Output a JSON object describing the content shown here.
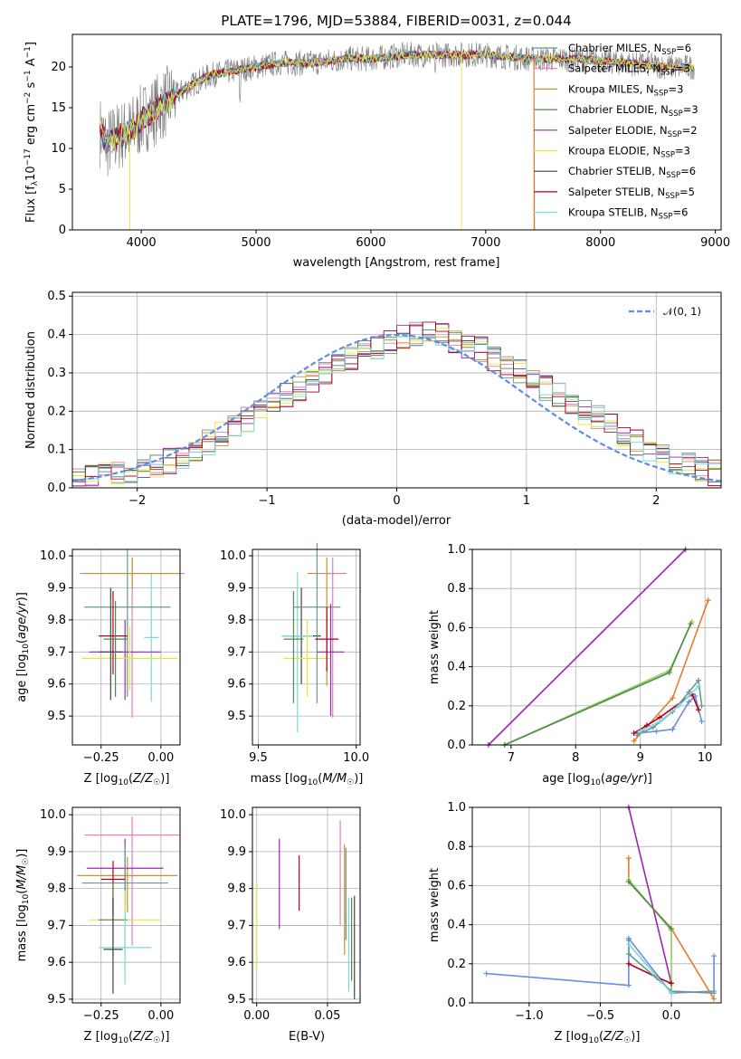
{
  "title": "PLATE=1796, MJD=53884, FIBERID=0031, z=0.044",
  "colors": [
    "#6a9a8a",
    "#f07ab8",
    "#c8922e",
    "#4f8a4f",
    "#9b27b0",
    "#e8e832",
    "#444444",
    "#b00020",
    "#7ad8e0"
  ],
  "chart_data": [
    {
      "id": "spectrum",
      "type": "line",
      "xlabel": "wavelength [Angstrom, rest frame]",
      "ylabel": "Flux [f_λ 10^-17 erg cm^-2 s^-1 A^-1]",
      "ylabel_parts": {
        "main": "Flux [f",
        "sub1": "λ",
        "mid": "10",
        "sup1": "−17",
        "rest": " erg cm",
        "sup2": "−2",
        "rest2": " s",
        "sup3": "−1",
        "rest3": " A",
        "sup4": "−1",
        "end": "]"
      },
      "xlim": [
        3400,
        9050
      ],
      "ylim": [
        0,
        24
      ],
      "xticks": [
        "4000",
        "5000",
        "6000",
        "7000",
        "8000",
        "9000"
      ],
      "yticks": [
        "0",
        "5",
        "10",
        "15",
        "20"
      ],
      "legend_position": "right",
      "legend": [
        {
          "pre": "Chabrier MILES, N",
          "sub": "SSP",
          "post": "=6"
        },
        {
          "pre": "Salpeter MILES, N",
          "sub": "SSP",
          "post": "=3"
        },
        {
          "pre": "Kroupa MILES, N",
          "sub": "SSP",
          "post": "=3"
        },
        {
          "pre": "Chabrier ELODIE, N",
          "sub": "SSP",
          "post": "=3"
        },
        {
          "pre": "Salpeter ELODIE, N",
          "sub": "SSP",
          "post": "=2"
        },
        {
          "pre": "Kroupa ELODIE, N",
          "sub": "SSP",
          "post": "=3"
        },
        {
          "pre": "Chabrier STELIB, N",
          "sub": "SSP",
          "post": "=6"
        },
        {
          "pre": "Salpeter STELIB, N",
          "sub": "SSP",
          "post": "=5"
        },
        {
          "pre": "Kroupa STELIB, N",
          "sub": "SSP",
          "post": "=6"
        }
      ],
      "continuum": [
        [
          3650,
          12
        ],
        [
          3700,
          10.5
        ],
        [
          3800,
          11.5
        ],
        [
          3900,
          12
        ],
        [
          4000,
          13.5
        ],
        [
          4100,
          14.5
        ],
        [
          4200,
          15.5
        ],
        [
          4400,
          17.5
        ],
        [
          4600,
          19
        ],
        [
          4800,
          19.5
        ],
        [
          5000,
          20
        ],
        [
          5200,
          20.5
        ],
        [
          5500,
          20.5
        ],
        [
          5800,
          21
        ],
        [
          6000,
          21
        ],
        [
          6300,
          21.5
        ],
        [
          6600,
          21.5
        ],
        [
          7000,
          21.5
        ],
        [
          7400,
          21
        ],
        [
          7800,
          21
        ],
        [
          8200,
          20.5
        ],
        [
          8600,
          20
        ],
        [
          8800,
          20
        ]
      ]
    },
    {
      "id": "residuals",
      "type": "bar",
      "xlabel": "(data-model)/error",
      "ylabel": "Normed distribution",
      "xlim": [
        -2.5,
        2.5
      ],
      "ylim": [
        0,
        0.51
      ],
      "xticks": [
        "−2",
        "−1",
        "0",
        "1",
        "2"
      ],
      "yticks": [
        "0.0",
        "0.1",
        "0.2",
        "0.3",
        "0.4",
        "0.5"
      ],
      "legend": "𝒩(0, 1)",
      "legend_position": "top-right",
      "bin_width": 0.1,
      "bins_start": -2.5,
      "series_values": [
        0.02,
        0.025,
        0.03,
        0.035,
        0.04,
        0.05,
        0.06,
        0.07,
        0.085,
        0.1,
        0.12,
        0.14,
        0.16,
        0.18,
        0.2,
        0.22,
        0.24,
        0.26,
        0.28,
        0.3,
        0.32,
        0.34,
        0.36,
        0.37,
        0.38,
        0.39,
        0.4,
        0.4,
        0.395,
        0.385,
        0.37,
        0.36,
        0.34,
        0.32,
        0.3,
        0.28,
        0.26,
        0.24,
        0.22,
        0.2,
        0.18,
        0.16,
        0.14,
        0.12,
        0.1,
        0.085,
        0.07,
        0.06,
        0.05,
        0.04
      ]
    },
    {
      "id": "age-vs-Z",
      "type": "scatter",
      "xlabel": "Z [log10(Z/Z☉)]",
      "ylabel": "age [log10(age/yr)]",
      "xlim": [
        -0.37,
        0.08
      ],
      "ylim": [
        9.41,
        10.02
      ],
      "xticks": [
        "−0.25",
        "0.00"
      ],
      "yticks": [
        "9.5",
        "9.6",
        "9.7",
        "9.8",
        "9.9",
        "10.0"
      ],
      "points": [
        {
          "x": -0.04,
          "y": 9.745,
          "xerr": 0.03,
          "yerr": [
            0.2,
            0.2
          ],
          "c": 8
        },
        {
          "x": -0.12,
          "y": 9.945,
          "xerr": 0.22,
          "yerr": [
            0.45,
            0.05
          ],
          "c": 1
        },
        {
          "x": -0.12,
          "y": 9.945,
          "xerr": 0.2,
          "yerr": [
            0.05,
            0.05
          ],
          "c": 2
        },
        {
          "x": -0.14,
          "y": 9.84,
          "xerr": 0.18,
          "yerr": [
            0.28,
            0.18
          ],
          "c": 0
        },
        {
          "x": -0.15,
          "y": 9.7,
          "xerr": 0.15,
          "yerr": [
            0.15,
            0.1
          ],
          "c": 4
        },
        {
          "x": -0.13,
          "y": 9.68,
          "xerr": 0.2,
          "yerr": [
            0.1,
            0.1
          ],
          "c": 5
        },
        {
          "x": -0.2,
          "y": 9.75,
          "xerr": 0.06,
          "yerr": [
            0.12,
            0.14
          ],
          "c": 7
        },
        {
          "x": -0.21,
          "y": 9.7,
          "xerr": 0.05,
          "yerr": [
            0.15,
            0.2
          ],
          "c": 6
        },
        {
          "x": -0.19,
          "y": 9.74,
          "xerr": 0.05,
          "yerr": [
            0.18,
            0.12
          ],
          "c": 3
        }
      ]
    },
    {
      "id": "age-vs-mass",
      "type": "scatter",
      "xlabel": "mass [log10(M/M☉)]",
      "ylabel": "",
      "xlim": [
        9.47,
        10.02
      ],
      "ylim": [
        9.41,
        10.02
      ],
      "xticks": [
        "9.5",
        "10.0"
      ],
      "yticks": [
        "9.5",
        "9.6",
        "9.7",
        "9.8",
        "9.9",
        "10.0"
      ],
      "points": [
        {
          "x": 9.72,
          "y": 9.75,
          "xerr": 0.1,
          "yerr": [
            0.15,
            0.15
          ],
          "c": 6
        },
        {
          "x": 9.7,
          "y": 9.75,
          "xerr": 0.08,
          "yerr": [
            0.3,
            0.2
          ],
          "c": 8
        },
        {
          "x": 9.75,
          "y": 9.68,
          "xerr": 0.12,
          "yerr": [
            0.12,
            0.12
          ],
          "c": 5
        },
        {
          "x": 9.8,
          "y": 9.84,
          "xerr": 0.12,
          "yerr": [
            0.3,
            0.2
          ],
          "c": 0
        },
        {
          "x": 9.85,
          "y": 9.945,
          "xerr": 0.1,
          "yerr": [
            0.35,
            0.05
          ],
          "c": 2
        },
        {
          "x": 9.88,
          "y": 9.945,
          "xerr": 0.05,
          "yerr": [
            0.45,
            0.05
          ],
          "c": 1
        },
        {
          "x": 9.87,
          "y": 9.7,
          "xerr": 0.07,
          "yerr": [
            0.2,
            0.15
          ],
          "c": 4
        },
        {
          "x": 9.85,
          "y": 9.74,
          "xerr": 0.06,
          "yerr": [
            0.1,
            0.1
          ],
          "c": 7
        },
        {
          "x": 9.68,
          "y": 9.74,
          "xerr": 0.05,
          "yerr": [
            0.2,
            0.15
          ],
          "c": 3
        }
      ]
    },
    {
      "id": "weight-vs-age",
      "type": "line",
      "xlabel": "age [log10(age/yr)]",
      "ylabel": "mass weight",
      "xlim": [
        6.4,
        10.25
      ],
      "ylim": [
        0,
        1
      ],
      "xticks": [
        "7",
        "8",
        "9",
        "10"
      ],
      "yticks": [
        "0.0",
        "0.2",
        "0.4",
        "0.6",
        "0.8",
        "1.0"
      ],
      "lines": [
        {
          "c": "#9b27b0",
          "pts": [
            [
              6.65,
              0
            ],
            [
              9.7,
              1.0
            ]
          ]
        },
        {
          "c": "#8fd14f",
          "pts": [
            [
              6.9,
              0
            ],
            [
              9.45,
              0.38
            ],
            [
              9.8,
              0.63
            ]
          ]
        },
        {
          "c": "#4f8a4f",
          "pts": [
            [
              6.9,
              0
            ],
            [
              9.45,
              0.37
            ],
            [
              9.78,
              0.62
            ]
          ]
        },
        {
          "c": "#e87b2e",
          "pts": [
            [
              8.9,
              0.02
            ],
            [
              9.5,
              0.24
            ],
            [
              10.05,
              0.74
            ]
          ]
        },
        {
          "c": "#6a8fe0",
          "pts": [
            [
              8.95,
              0.06
            ],
            [
              9.25,
              0.07
            ],
            [
              9.5,
              0.08
            ],
            [
              9.75,
              0.22
            ],
            [
              9.85,
              0.25
            ],
            [
              9.95,
              0.12
            ]
          ]
        },
        {
          "c": "#b00020",
          "pts": [
            [
              8.9,
              0.06
            ],
            [
              9.1,
              0.1
            ],
            [
              9.3,
              0.14
            ],
            [
              9.8,
              0.26
            ],
            [
              9.9,
              0.18
            ]
          ]
        },
        {
          "c": "#6a9a8a",
          "pts": [
            [
              8.95,
              0.05
            ],
            [
              9.2,
              0.09
            ],
            [
              9.5,
              0.17
            ],
            [
              9.75,
              0.27
            ],
            [
              9.9,
              0.33
            ],
            [
              9.95,
              0.2
            ]
          ]
        },
        {
          "c": "#7ad8e0",
          "pts": [
            [
              9.0,
              0.07
            ],
            [
              9.3,
              0.12
            ],
            [
              9.6,
              0.2
            ],
            [
              9.9,
              0.3
            ]
          ]
        }
      ]
    },
    {
      "id": "mass-vs-Z",
      "type": "scatter",
      "xlabel": "Z [log10(Z/Z☉)]",
      "ylabel": "mass [log10(M/M☉)]",
      "xlim": [
        -0.37,
        0.08
      ],
      "ylim": [
        9.49,
        10.02
      ],
      "xticks": [
        "−0.25",
        "0.00"
      ],
      "yticks": [
        "9.5",
        "9.6",
        "9.7",
        "9.8",
        "9.9",
        "10.0"
      ],
      "points": [
        {
          "x": -0.12,
          "y": 9.945,
          "xerr": 0.2,
          "yerr": [
            0.3,
            0.05
          ],
          "c": 1
        },
        {
          "x": -0.14,
          "y": 9.835,
          "xerr": 0.21,
          "yerr": [
            0.1,
            0.05
          ],
          "c": 2
        },
        {
          "x": -0.15,
          "y": 9.855,
          "xerr": 0.16,
          "yerr": [
            0.1,
            0.08
          ],
          "c": 4
        },
        {
          "x": -0.15,
          "y": 9.815,
          "xerr": 0.18,
          "yerr": [
            0.1,
            0.1
          ],
          "c": 0
        },
        {
          "x": -0.2,
          "y": 9.825,
          "xerr": 0.05,
          "yerr": [
            0.1,
            0.05
          ],
          "c": 7
        },
        {
          "x": -0.15,
          "y": 9.715,
          "xerr": 0.15,
          "yerr": [
            0.1,
            0.08
          ],
          "c": 5
        },
        {
          "x": -0.2,
          "y": 9.715,
          "xerr": 0.06,
          "yerr": [
            0.1,
            0.1
          ],
          "c": 3
        },
        {
          "x": -0.15,
          "y": 9.64,
          "xerr": 0.11,
          "yerr": [
            0.1,
            0.1
          ],
          "c": 8
        },
        {
          "x": -0.2,
          "y": 9.635,
          "xerr": 0.04,
          "yerr": [
            0.12,
            0.14
          ],
          "c": 6
        }
      ]
    },
    {
      "id": "mass-vs-EBV",
      "type": "scatter",
      "xlabel": "E(B-V)",
      "ylabel": "",
      "xlim": [
        -0.003,
        0.073
      ],
      "ylim": [
        9.49,
        10.02
      ],
      "xticks": [
        "0.00",
        "0.05"
      ],
      "yticks": [
        "9.5",
        "9.6",
        "9.7",
        "9.8",
        "9.9",
        "10.0"
      ],
      "vlines": [
        {
          "x": 0.0,
          "y0": 9.58,
          "y1": 9.82,
          "c": 5
        },
        {
          "x": 0.016,
          "y0": 9.69,
          "y1": 9.935,
          "c": 4
        },
        {
          "x": 0.03,
          "y0": 9.74,
          "y1": 9.89,
          "c": 7
        },
        {
          "x": 0.059,
          "y0": 9.7,
          "y1": 9.985,
          "c": 1
        },
        {
          "x": 0.062,
          "y0": 9.62,
          "y1": 9.92,
          "c": 2
        },
        {
          "x": 0.063,
          "y0": 9.66,
          "y1": 9.91,
          "c": 0
        },
        {
          "x": 0.065,
          "y0": 9.52,
          "y1": 9.775,
          "c": 8
        },
        {
          "x": 0.067,
          "y0": 9.55,
          "y1": 9.775,
          "c": 3
        },
        {
          "x": 0.069,
          "y0": 9.5,
          "y1": 9.78,
          "c": 6
        }
      ]
    },
    {
      "id": "weight-vs-Z",
      "type": "line",
      "xlabel": "Z [log10(Z/Z☉)]",
      "ylabel": "mass weight",
      "xlim": [
        -1.4,
        0.35
      ],
      "ylim": [
        0,
        1
      ],
      "xticks": [
        "−1.0",
        "−0.5",
        "0.0"
      ],
      "yticks": [
        "0.0",
        "0.2",
        "0.4",
        "0.6",
        "0.8",
        "1.0"
      ],
      "lines": [
        {
          "c": "#6a8fe0",
          "pts": [
            [
              -1.3,
              0.15
            ],
            [
              -0.3,
              0.09
            ],
            [
              -0.3,
              0.33
            ],
            [
              0.0,
              0.05
            ],
            [
              0.3,
              0.06
            ],
            [
              0.3,
              0.24
            ]
          ]
        },
        {
          "c": "#9b27b0",
          "pts": [
            [
              -0.3,
              1.0
            ],
            [
              0.0,
              0.1
            ]
          ]
        },
        {
          "c": "#e87b2e",
          "pts": [
            [
              -0.3,
              0.74
            ],
            [
              -0.3,
              0.62
            ],
            [
              0.0,
              0.38
            ],
            [
              0.3,
              0.02
            ]
          ]
        },
        {
          "c": "#8fd14f",
          "pts": [
            [
              -0.3,
              0.63
            ],
            [
              0.0,
              0.37
            ],
            [
              0.0,
              0.06
            ]
          ]
        },
        {
          "c": "#4f8a4f",
          "pts": [
            [
              -0.3,
              0.62
            ],
            [
              0.0,
              0.38
            ]
          ]
        },
        {
          "c": "#b00020",
          "pts": [
            [
              -0.3,
              0.2
            ],
            [
              -0.1,
              0.13
            ],
            [
              0.0,
              0.1
            ]
          ]
        },
        {
          "c": "#6a9a8a",
          "pts": [
            [
              -0.3,
              0.32
            ],
            [
              -0.3,
              0.25
            ],
            [
              0.0,
              0.06
            ],
            [
              0.3,
              0.05
            ]
          ]
        },
        {
          "c": "#7ad8e0",
          "pts": [
            [
              -0.3,
              0.3
            ],
            [
              0.0,
              0.05
            ]
          ]
        }
      ]
    }
  ]
}
